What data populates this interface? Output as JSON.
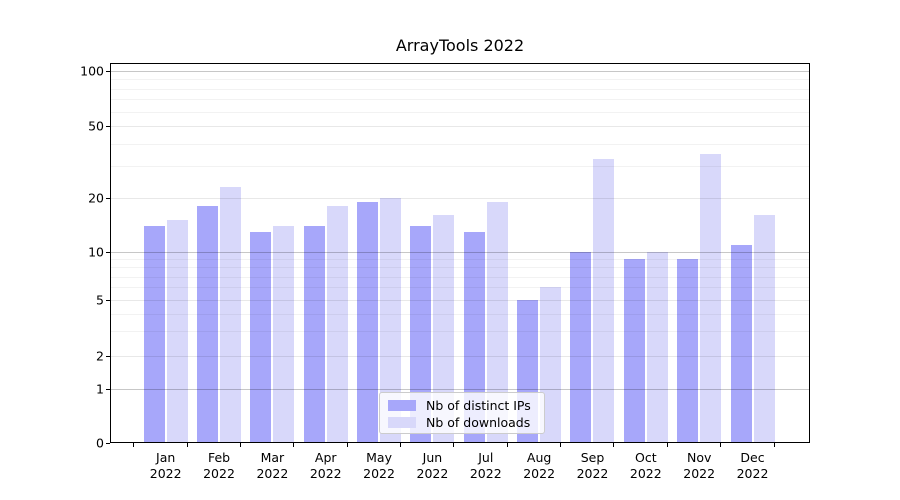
{
  "title": "ArrayTools 2022",
  "chart_data": {
    "type": "bar",
    "title": "ArrayTools 2022",
    "xlabel": "",
    "ylabel": "",
    "categories": [
      "Jan",
      "Feb",
      "Mar",
      "Apr",
      "May",
      "Jun",
      "Jul",
      "Aug",
      "Sep",
      "Oct",
      "Nov",
      "Dec"
    ],
    "category_year": "2022",
    "series": [
      {
        "name": "Nb of distinct IPs",
        "color": "#a7a7fa",
        "values": [
          14,
          18,
          13,
          14,
          19,
          14,
          13,
          5,
          10,
          9,
          9,
          11
        ]
      },
      {
        "name": "Nb of downloads",
        "color": "#d8d8fa",
        "values": [
          15,
          23,
          14,
          18,
          20,
          16,
          19,
          6,
          33,
          10,
          35,
          16
        ]
      }
    ],
    "yticks": [
      0,
      1,
      2,
      5,
      10,
      20,
      50,
      100
    ],
    "minor_yticks": [
      3,
      4,
      6,
      7,
      8,
      9,
      30,
      40,
      60,
      70,
      80,
      90
    ],
    "decade_ticks": [
      1,
      10,
      100
    ],
    "ylim": [
      0,
      113
    ],
    "scale": "log-like (linear 0-1 segment)",
    "grid": true,
    "legend_position": "lower center"
  }
}
